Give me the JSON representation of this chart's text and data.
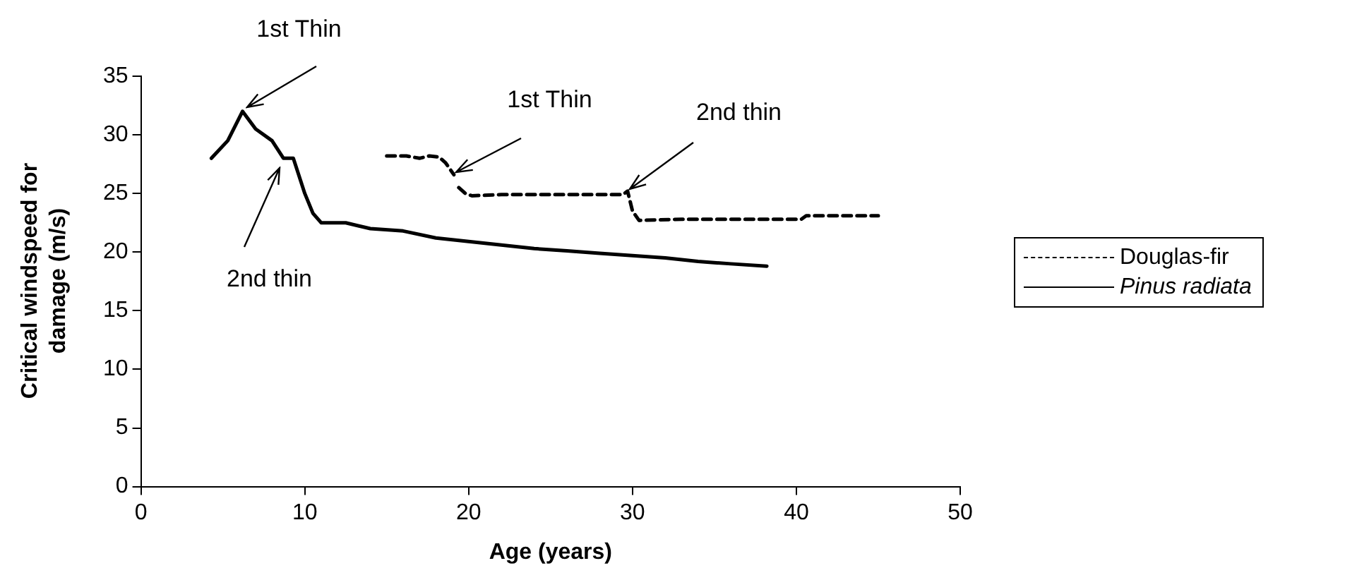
{
  "chart_data": {
    "type": "line",
    "xlabel": "Age (years)",
    "ylabel": "Critical windspeed for damage (m/s)",
    "xlim": [
      0,
      50
    ],
    "xticks": [
      0,
      10,
      20,
      30,
      40,
      50
    ],
    "ylim": [
      0,
      35
    ],
    "yticks": [
      0,
      5,
      10,
      15,
      20,
      25,
      30,
      35
    ],
    "grid": false,
    "legend": "right",
    "marker": "none",
    "series": [
      {
        "name": "Douglas-fir",
        "color": "#000000",
        "line_style": "dashed",
        "x": [
          15,
          16.2,
          17,
          17.6,
          18.2,
          18.6,
          19.1,
          19.2,
          19.4,
          19.8,
          20.2,
          22,
          25,
          27,
          29.4,
          29.7,
          30,
          30.4,
          33,
          36,
          40.3,
          40.6,
          45
        ],
        "values": [
          28.2,
          28.2,
          28,
          28.2,
          28.1,
          27.6,
          26.6,
          null,
          25.5,
          25,
          24.8,
          24.9,
          24.9,
          24.9,
          24.9,
          25.2,
          23.5,
          22.7,
          22.8,
          22.8,
          22.8,
          23.1,
          23.1
        ]
      },
      {
        "name": "Pinus radiata",
        "color": "#000000",
        "line_style": "solid",
        "x": [
          4.3,
          5.3,
          6.2,
          7,
          8,
          8.7,
          9.3,
          10,
          10.5,
          11,
          12.5,
          14,
          16,
          18,
          20,
          22,
          24,
          26,
          28,
          30,
          32,
          34,
          36,
          38.2
        ],
        "values": [
          28,
          29.5,
          32,
          30.5,
          29.5,
          28,
          28,
          25,
          23.3,
          22.5,
          22.5,
          22,
          21.8,
          21.2,
          20.9,
          20.6,
          20.3,
          20.1,
          19.9,
          19.7,
          19.5,
          19.2,
          19,
          18.8
        ]
      }
    ],
    "annotations": [
      {
        "text": "1st Thin",
        "x": 6.2,
        "y": 32
      },
      {
        "text": "2nd thin",
        "x": 8.7,
        "y": 27.5
      },
      {
        "text": "1st Thin",
        "x": 19,
        "y": 26.5
      },
      {
        "text": "2nd thin",
        "x": 29.6,
        "y": 25
      }
    ]
  }
}
